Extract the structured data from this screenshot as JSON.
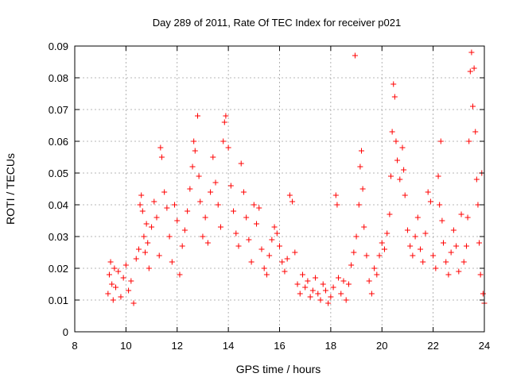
{
  "chart_data": {
    "type": "scatter",
    "title": "Day 289 of 2011, Rate Of TEC Index for receiver p021",
    "xlabel": "GPS time / hours",
    "ylabel": "ROTI / TECUs",
    "xlim": [
      8,
      24
    ],
    "ylim": [
      0,
      0.09
    ],
    "xticks": [
      "8",
      "10",
      "12",
      "14",
      "16",
      "18",
      "20",
      "22",
      "24"
    ],
    "yticks": [
      "0",
      "0.01",
      "0.02",
      "0.03",
      "0.04",
      "0.05",
      "0.06",
      "0.07",
      "0.08",
      "0.09"
    ],
    "grid": true,
    "marker": "+",
    "color": "#ff0000",
    "series": [
      {
        "points": [
          [
            9.3,
            0.012
          ],
          [
            9.35,
            0.018
          ],
          [
            9.4,
            0.022
          ],
          [
            9.45,
            0.015
          ],
          [
            9.5,
            0.01
          ],
          [
            9.55,
            0.02
          ],
          [
            9.6,
            0.014
          ],
          [
            9.7,
            0.019
          ],
          [
            9.8,
            0.011
          ],
          [
            9.9,
            0.017
          ],
          [
            10.0,
            0.021
          ],
          [
            10.1,
            0.013
          ],
          [
            10.2,
            0.016
          ],
          [
            10.3,
            0.009
          ],
          [
            10.4,
            0.023
          ],
          [
            10.5,
            0.026
          ],
          [
            10.55,
            0.04
          ],
          [
            10.6,
            0.043
          ],
          [
            10.65,
            0.038
          ],
          [
            10.7,
            0.03
          ],
          [
            10.75,
            0.025
          ],
          [
            10.8,
            0.034
          ],
          [
            10.85,
            0.028
          ],
          [
            10.9,
            0.02
          ],
          [
            11.0,
            0.033
          ],
          [
            11.1,
            0.041
          ],
          [
            11.2,
            0.036
          ],
          [
            11.3,
            0.024
          ],
          [
            11.35,
            0.058
          ],
          [
            11.4,
            0.055
          ],
          [
            11.5,
            0.044
          ],
          [
            11.6,
            0.039
          ],
          [
            11.7,
            0.03
          ],
          [
            11.8,
            0.022
          ],
          [
            11.9,
            0.04
          ],
          [
            12.0,
            0.035
          ],
          [
            12.1,
            0.018
          ],
          [
            12.2,
            0.027
          ],
          [
            12.3,
            0.032
          ],
          [
            12.4,
            0.038
          ],
          [
            12.5,
            0.045
          ],
          [
            12.6,
            0.052
          ],
          [
            12.65,
            0.06
          ],
          [
            12.7,
            0.057
          ],
          [
            12.8,
            0.068
          ],
          [
            12.85,
            0.049
          ],
          [
            12.9,
            0.041
          ],
          [
            13.0,
            0.03
          ],
          [
            13.1,
            0.036
          ],
          [
            13.2,
            0.028
          ],
          [
            13.3,
            0.044
          ],
          [
            13.4,
            0.055
          ],
          [
            13.5,
            0.047
          ],
          [
            13.6,
            0.04
          ],
          [
            13.7,
            0.033
          ],
          [
            13.8,
            0.06
          ],
          [
            13.85,
            0.066
          ],
          [
            13.9,
            0.068
          ],
          [
            14.0,
            0.058
          ],
          [
            14.1,
            0.046
          ],
          [
            14.2,
            0.038
          ],
          [
            14.3,
            0.031
          ],
          [
            14.4,
            0.027
          ],
          [
            14.5,
            0.053
          ],
          [
            14.6,
            0.044
          ],
          [
            14.7,
            0.036
          ],
          [
            14.8,
            0.029
          ],
          [
            14.9,
            0.022
          ],
          [
            15.0,
            0.04
          ],
          [
            15.1,
            0.034
          ],
          [
            15.2,
            0.039
          ],
          [
            15.3,
            0.026
          ],
          [
            15.4,
            0.02
          ],
          [
            15.5,
            0.018
          ],
          [
            15.6,
            0.024
          ],
          [
            15.7,
            0.029
          ],
          [
            15.8,
            0.033
          ],
          [
            15.9,
            0.031
          ],
          [
            16.0,
            0.027
          ],
          [
            16.1,
            0.022
          ],
          [
            16.2,
            0.019
          ],
          [
            16.3,
            0.023
          ],
          [
            16.4,
            0.043
          ],
          [
            16.5,
            0.041
          ],
          [
            16.6,
            0.025
          ],
          [
            16.7,
            0.015
          ],
          [
            16.8,
            0.012
          ],
          [
            16.9,
            0.018
          ],
          [
            17.0,
            0.014
          ],
          [
            17.1,
            0.016
          ],
          [
            17.2,
            0.011
          ],
          [
            17.3,
            0.013
          ],
          [
            17.4,
            0.017
          ],
          [
            17.5,
            0.012
          ],
          [
            17.6,
            0.01
          ],
          [
            17.7,
            0.015
          ],
          [
            17.8,
            0.013
          ],
          [
            17.9,
            0.009
          ],
          [
            18.0,
            0.011
          ],
          [
            18.1,
            0.014
          ],
          [
            18.2,
            0.043
          ],
          [
            18.25,
            0.04
          ],
          [
            18.3,
            0.017
          ],
          [
            18.4,
            0.012
          ],
          [
            18.5,
            0.016
          ],
          [
            18.6,
            0.01
          ],
          [
            18.7,
            0.015
          ],
          [
            18.8,
            0.021
          ],
          [
            18.9,
            0.025
          ],
          [
            18.95,
            0.087
          ],
          [
            19.0,
            0.03
          ],
          [
            19.1,
            0.04
          ],
          [
            19.15,
            0.052
          ],
          [
            19.2,
            0.057
          ],
          [
            19.25,
            0.045
          ],
          [
            19.3,
            0.033
          ],
          [
            19.4,
            0.024
          ],
          [
            19.5,
            0.016
          ],
          [
            19.6,
            0.012
          ],
          [
            19.7,
            0.02
          ],
          [
            19.8,
            0.018
          ],
          [
            19.9,
            0.024
          ],
          [
            20.0,
            0.028
          ],
          [
            20.1,
            0.026
          ],
          [
            20.2,
            0.031
          ],
          [
            20.3,
            0.037
          ],
          [
            20.35,
            0.049
          ],
          [
            20.4,
            0.063
          ],
          [
            20.45,
            0.078
          ],
          [
            20.5,
            0.074
          ],
          [
            20.55,
            0.06
          ],
          [
            20.6,
            0.054
          ],
          [
            20.7,
            0.048
          ],
          [
            20.8,
            0.058
          ],
          [
            20.85,
            0.051
          ],
          [
            20.9,
            0.043
          ],
          [
            21.0,
            0.032
          ],
          [
            21.1,
            0.027
          ],
          [
            21.2,
            0.024
          ],
          [
            21.3,
            0.03
          ],
          [
            21.4,
            0.036
          ],
          [
            21.5,
            0.026
          ],
          [
            21.6,
            0.022
          ],
          [
            21.7,
            0.031
          ],
          [
            21.8,
            0.044
          ],
          [
            21.9,
            0.041
          ],
          [
            22.0,
            0.024
          ],
          [
            22.1,
            0.02
          ],
          [
            22.2,
            0.049
          ],
          [
            22.25,
            0.04
          ],
          [
            22.3,
            0.06
          ],
          [
            22.35,
            0.035
          ],
          [
            22.4,
            0.028
          ],
          [
            22.5,
            0.022
          ],
          [
            22.6,
            0.018
          ],
          [
            22.7,
            0.025
          ],
          [
            22.8,
            0.032
          ],
          [
            22.9,
            0.027
          ],
          [
            23.0,
            0.019
          ],
          [
            23.1,
            0.037
          ],
          [
            23.2,
            0.022
          ],
          [
            23.3,
            0.027
          ],
          [
            23.35,
            0.036
          ],
          [
            23.4,
            0.06
          ],
          [
            23.45,
            0.082
          ],
          [
            23.5,
            0.088
          ],
          [
            23.55,
            0.071
          ],
          [
            23.6,
            0.083
          ],
          [
            23.65,
            0.063
          ],
          [
            23.7,
            0.048
          ],
          [
            23.75,
            0.04
          ],
          [
            23.8,
            0.028
          ],
          [
            23.85,
            0.018
          ],
          [
            23.9,
            0.05
          ],
          [
            23.95,
            0.012
          ],
          [
            24.0,
            0.009
          ]
        ]
      }
    ]
  }
}
